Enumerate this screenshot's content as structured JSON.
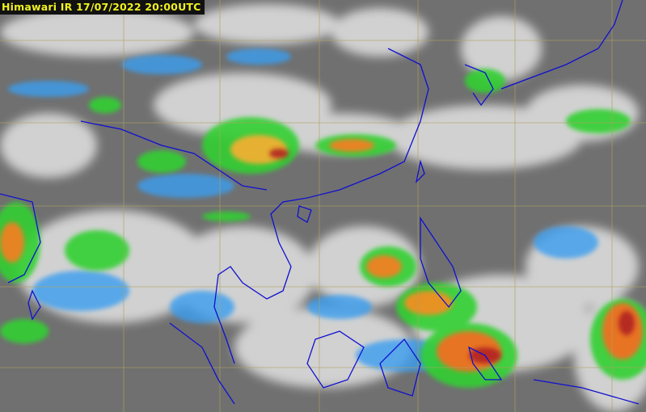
{
  "title": "Himawari IR 17/07/2022 20:00UTC",
  "image": {
    "type": "infrared satellite imagery",
    "colors": {
      "background": "#6e6e6e",
      "cloud": "#e8e8e8",
      "cold_blue": "#3a9ef0",
      "green": "#30d030",
      "yellow": "#f0e040",
      "orange": "#f08020",
      "red": "#c02020",
      "coastline": "#1010d0",
      "gridline": "#b0a060"
    }
  }
}
